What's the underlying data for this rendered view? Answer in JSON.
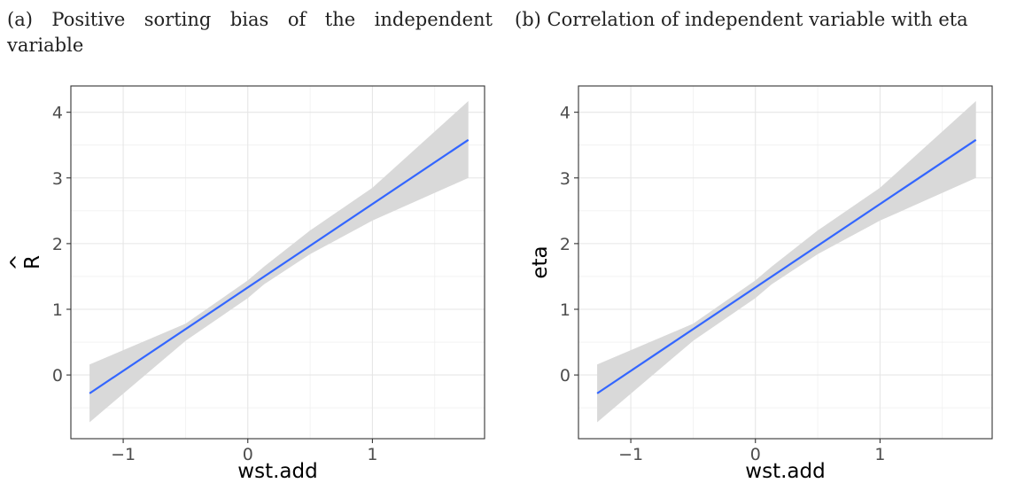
{
  "chart_data": [
    {
      "type": "line",
      "title": "(a) Positive sorting bias of the independent variable",
      "xlabel": "wst.add",
      "ylabel": "R",
      "ylabel_accent": "^",
      "xlim": [
        -1.42,
        1.9
      ],
      "ylim": [
        -0.97,
        4.4
      ],
      "x_ticks": [
        -1,
        0,
        1
      ],
      "y_ticks": [
        0,
        1,
        2,
        3,
        4
      ],
      "grid": true,
      "legend": "none",
      "series": [
        {
          "x": [
            -1.27,
            1.77
          ],
          "y": [
            -0.28,
            3.58
          ],
          "ci_x": [
            -1.27,
            -0.5,
            0.0,
            0.13,
            0.5,
            1.0,
            1.77
          ],
          "ci_lower": [
            -0.72,
            0.52,
            1.17,
            1.38,
            1.84,
            2.35,
            3.0
          ],
          "ci_upper": [
            0.16,
            0.78,
            1.44,
            1.65,
            2.2,
            2.85,
            4.17
          ],
          "color": "#3366ff",
          "band_color": "#d9d9d9"
        }
      ]
    },
    {
      "type": "line",
      "title": "(b) Correlation of independent variable with eta",
      "xlabel": "wst.add",
      "ylabel": "eta",
      "xlim": [
        -1.42,
        1.9
      ],
      "ylim": [
        -0.97,
        4.4
      ],
      "x_ticks": [
        -1,
        0,
        1
      ],
      "y_ticks": [
        0,
        1,
        2,
        3,
        4
      ],
      "grid": true,
      "legend": "none",
      "series": [
        {
          "x": [
            -1.27,
            1.77
          ],
          "y": [
            -0.28,
            3.58
          ],
          "ci_x": [
            -1.27,
            -0.5,
            0.0,
            0.13,
            0.5,
            1.0,
            1.77
          ],
          "ci_lower": [
            -0.72,
            0.52,
            1.17,
            1.38,
            1.84,
            2.35,
            3.0
          ],
          "ci_upper": [
            0.16,
            0.78,
            1.44,
            1.65,
            2.2,
            2.85,
            4.17
          ],
          "color": "#3366ff",
          "band_color": "#d9d9d9"
        }
      ]
    }
  ]
}
